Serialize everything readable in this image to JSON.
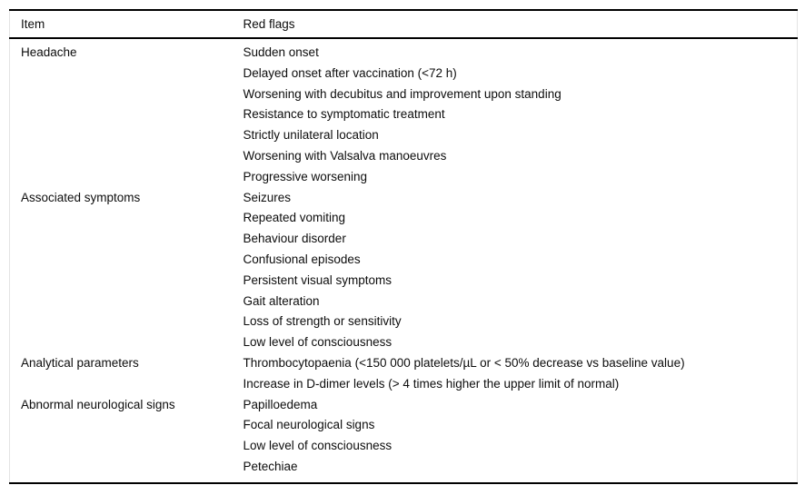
{
  "table": {
    "headers": {
      "item": "Item",
      "red_flags": "Red flags"
    },
    "rows": [
      {
        "item": "Headache",
        "flags": [
          "Sudden onset",
          "Delayed onset after vaccination (<72 h)",
          "Worsening with decubitus and improvement upon standing",
          "Resistance to symptomatic treatment",
          "Strictly unilateral location",
          "Worsening with Valsalva manoeuvres",
          "Progressive worsening"
        ]
      },
      {
        "item": "Associated symptoms",
        "flags": [
          "Seizures",
          "Repeated vomiting",
          "Behaviour disorder",
          "Confusional episodes",
          "Persistent visual symptoms",
          "Gait alteration",
          "Loss of strength or sensitivity",
          "Low level of consciousness"
        ]
      },
      {
        "item": "Analytical parameters",
        "flags": [
          "Thrombocytopaenia (<150 000 platelets/µL or < 50% decrease vs baseline value)",
          "Increase in D-dimer levels (> 4 times higher the upper limit of normal)"
        ]
      },
      {
        "item": "Abnormal neurological signs",
        "flags": [
          "Papilloedema",
          "Focal neurological signs",
          "Low level of consciousness",
          "Petechiae"
        ]
      }
    ]
  }
}
